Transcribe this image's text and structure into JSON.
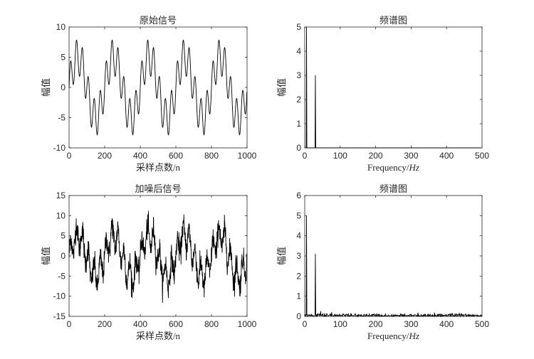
{
  "chart_data": [
    {
      "type": "line",
      "title": "原始信号",
      "xlabel": "采样点数/n",
      "ylabel": "幅值",
      "xlim": [
        0,
        1000
      ],
      "ylim": [
        -10,
        10
      ],
      "xticks": [
        0,
        200,
        400,
        600,
        800,
        1000
      ],
      "yticks": [
        -10,
        -5,
        0,
        5,
        10
      ],
      "sample_rate": 1000,
      "n_samples": 1000,
      "components": [
        {
          "freq_hz": 5,
          "amplitude": 5
        },
        {
          "freq_hz": 30,
          "amplitude": 3
        }
      ],
      "noise_std": 0
    },
    {
      "type": "line",
      "title": "频谱图",
      "xlabel": "Frequency/",
      "xlabel_italic": "Hz",
      "ylabel": "幅值",
      "xlim": [
        0,
        500
      ],
      "ylim": [
        0,
        5
      ],
      "xticks": [
        0,
        100,
        200,
        300,
        400,
        500
      ],
      "yticks": [
        0,
        1,
        2,
        3,
        4,
        5
      ],
      "peaks": [
        {
          "freq_hz": 5,
          "amplitude": 5
        },
        {
          "freq_hz": 30,
          "amplitude": 3
        }
      ],
      "noise_floor": 0
    },
    {
      "type": "line",
      "title": "加噪后信号",
      "xlabel": "采样点数/n",
      "ylabel": "幅值",
      "xlim": [
        0,
        1000
      ],
      "ylim": [
        -15,
        15
      ],
      "xticks": [
        0,
        200,
        400,
        600,
        800,
        1000
      ],
      "yticks": [
        -15,
        -10,
        -5,
        0,
        5,
        10,
        15
      ],
      "sample_rate": 1000,
      "n_samples": 1000,
      "components": [
        {
          "freq_hz": 5,
          "amplitude": 5
        },
        {
          "freq_hz": 30,
          "amplitude": 3
        }
      ],
      "noise_std": 1.5
    },
    {
      "type": "line",
      "title": "频谱图",
      "xlabel": "Frequency/",
      "xlabel_italic": "Hz",
      "ylabel": "幅值",
      "xlim": [
        0,
        500
      ],
      "ylim": [
        0,
        6
      ],
      "xticks": [
        0,
        100,
        200,
        300,
        400,
        500
      ],
      "yticks": [
        0,
        1,
        2,
        3,
        4,
        5,
        6
      ],
      "peaks": [
        {
          "freq_hz": 5,
          "amplitude": 5
        },
        {
          "freq_hz": 30,
          "amplitude": 3.1
        }
      ],
      "noise_floor": 0.08
    }
  ]
}
